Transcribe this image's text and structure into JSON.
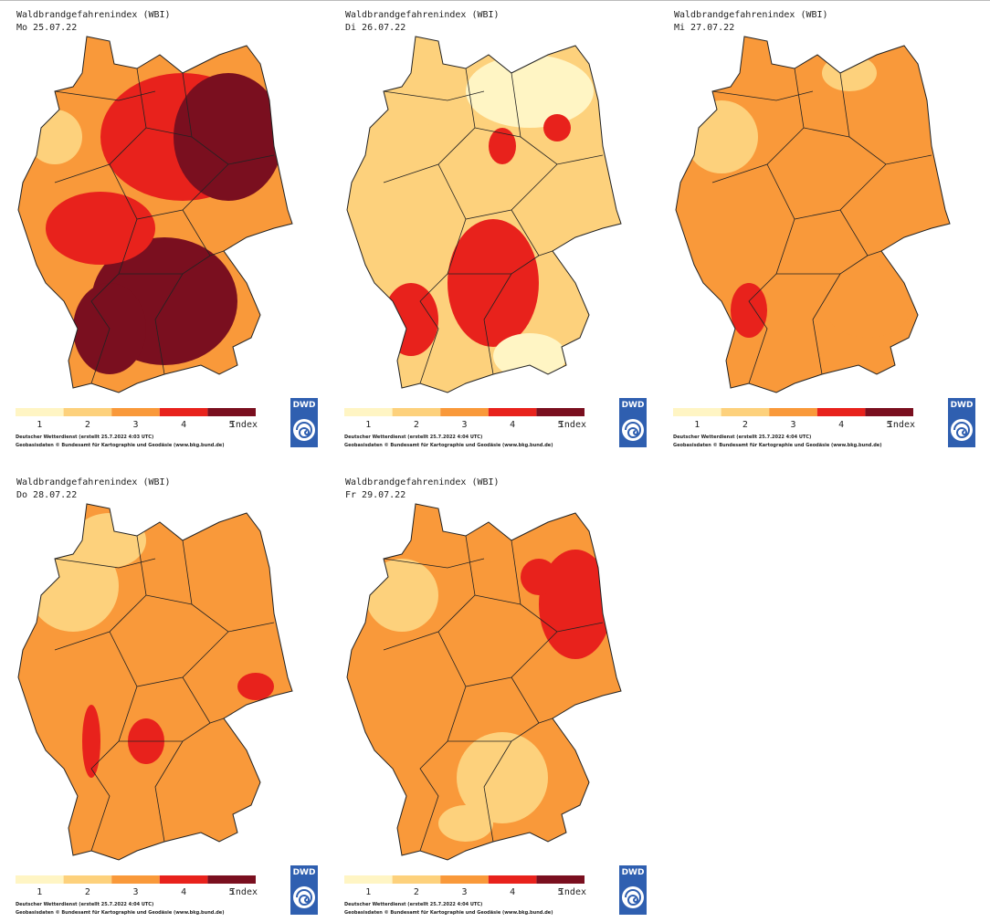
{
  "legend": {
    "colors": [
      "#fff5c4",
      "#fdd17c",
      "#f9993a",
      "#e8221c",
      "#7a0f1f"
    ],
    "labels": [
      "1",
      "2",
      "3",
      "4",
      "5"
    ],
    "unit": "Index"
  },
  "logo": "DWD",
  "panels": [
    {
      "title": "Waldbrandgefahrenindex (WBI)",
      "date": "Mo 25.07.22",
      "footer": [
        "Deutscher Wetterdienst (erstellt 25.7.2022 4:03 UTC)",
        "Geobasisdaten © Bundesamt für Kartographie und Geodäsie (www.bkg.bund.de)"
      ]
    },
    {
      "title": "Waldbrandgefahrenindex (WBI)",
      "date": "Di 26.07.22",
      "footer": [
        "Deutscher Wetterdienst (erstellt 25.7.2022 4:04 UTC)",
        "Geobasisdaten © Bundesamt für Kartographie und Geodäsie (www.bkg.bund.de)"
      ]
    },
    {
      "title": "Waldbrandgefahrenindex (WBI)",
      "date": "Mi 27.07.22",
      "footer": [
        "Deutscher Wetterdienst (erstellt 25.7.2022 4:04 UTC)",
        "Geobasisdaten © Bundesamt für Kartographie und Geodäsie (www.bkg.bund.de)"
      ]
    },
    {
      "title": "Waldbrandgefahrenindex (WBI)",
      "date": "Do 28.07.22",
      "footer": [
        "Deutscher Wetterdienst (erstellt 25.7.2022 4:04 UTC)",
        "Geobasisdaten © Bundesamt für Kartographie und Geodäsie (www.bkg.bund.de)"
      ]
    },
    {
      "title": "Waldbrandgefahrenindex (WBI)",
      "date": "Fr 29.07.22",
      "footer": [
        "Deutscher Wetterdienst (erstellt 25.7.2022 4:04 UTC)",
        "Geobasisdaten © Bundesamt für Kartographie und Geodäsie (www.bkg.bund.de)"
      ]
    }
  ]
}
